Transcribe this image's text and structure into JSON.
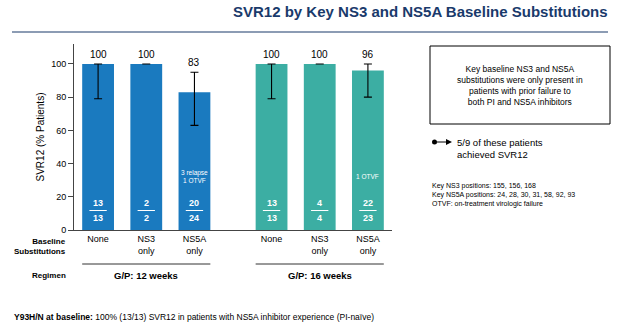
{
  "chart_data": {
    "type": "bar",
    "title": "SVR12 by Key NS3 and NS5A Baseline Substitutions",
    "title_color": "#1A3A6B",
    "categories": [
      "None",
      "NS3\nonly",
      "NS5A\nonly",
      "None",
      "NS3\nonly",
      "NS5A\nonly"
    ],
    "values": [
      100,
      100,
      83,
      100,
      100,
      96
    ],
    "colors": [
      "#1A7ABF",
      "#1A7ABF",
      "#1A7ABF",
      "#3CAEA3",
      "#3CAEA3",
      "#3CAEA3"
    ],
    "ci_low": [
      79,
      100,
      63,
      79,
      100,
      80
    ],
    "ci_high": [
      100,
      100,
      95,
      100,
      100,
      100
    ],
    "numerators": [
      13,
      2,
      20,
      13,
      4,
      22
    ],
    "denominators": [
      13,
      2,
      24,
      13,
      4,
      23
    ],
    "bar_annotations": [
      null,
      null,
      "3 relapse\n1 OTVF",
      null,
      null,
      "1 OTVF"
    ],
    "groups": [
      "G/P: 12 weeks",
      "G/P: 12 weeks",
      "G/P: 12 weeks",
      "G/P: 16 weeks",
      "G/P: 16 weeks",
      "G/P: 16 weeks"
    ],
    "category_title": "Baseline\nSubstitutions",
    "group_title": "Regimen",
    "ylabel": "SVR12 (% Patients)",
    "ylim": [
      0,
      112
    ],
    "yticks": [
      0,
      20,
      40,
      60,
      80,
      100
    ],
    "grid": false,
    "data_labels": true,
    "box_text": "Key baseline NS3 and NS5A\nsubstitutions were only present in\npatients with prior failure to\nboth PI and NS5A inhibitors",
    "arrow_text": "5/9 of these patients\nachieved SVR12",
    "key_text": "Key NS3 positions: 155, 156, 168\nKey NS5A positions: 24, 28, 30, 31, 58, 92, 93\nOTVF: on-treatment virologic failure",
    "footnote_bold": "Y93H/N at baseline:",
    "footnote_rest": " 100% (13/13) SVR12 in patients with NS5A inhibitor experience (PI-naïve)"
  }
}
